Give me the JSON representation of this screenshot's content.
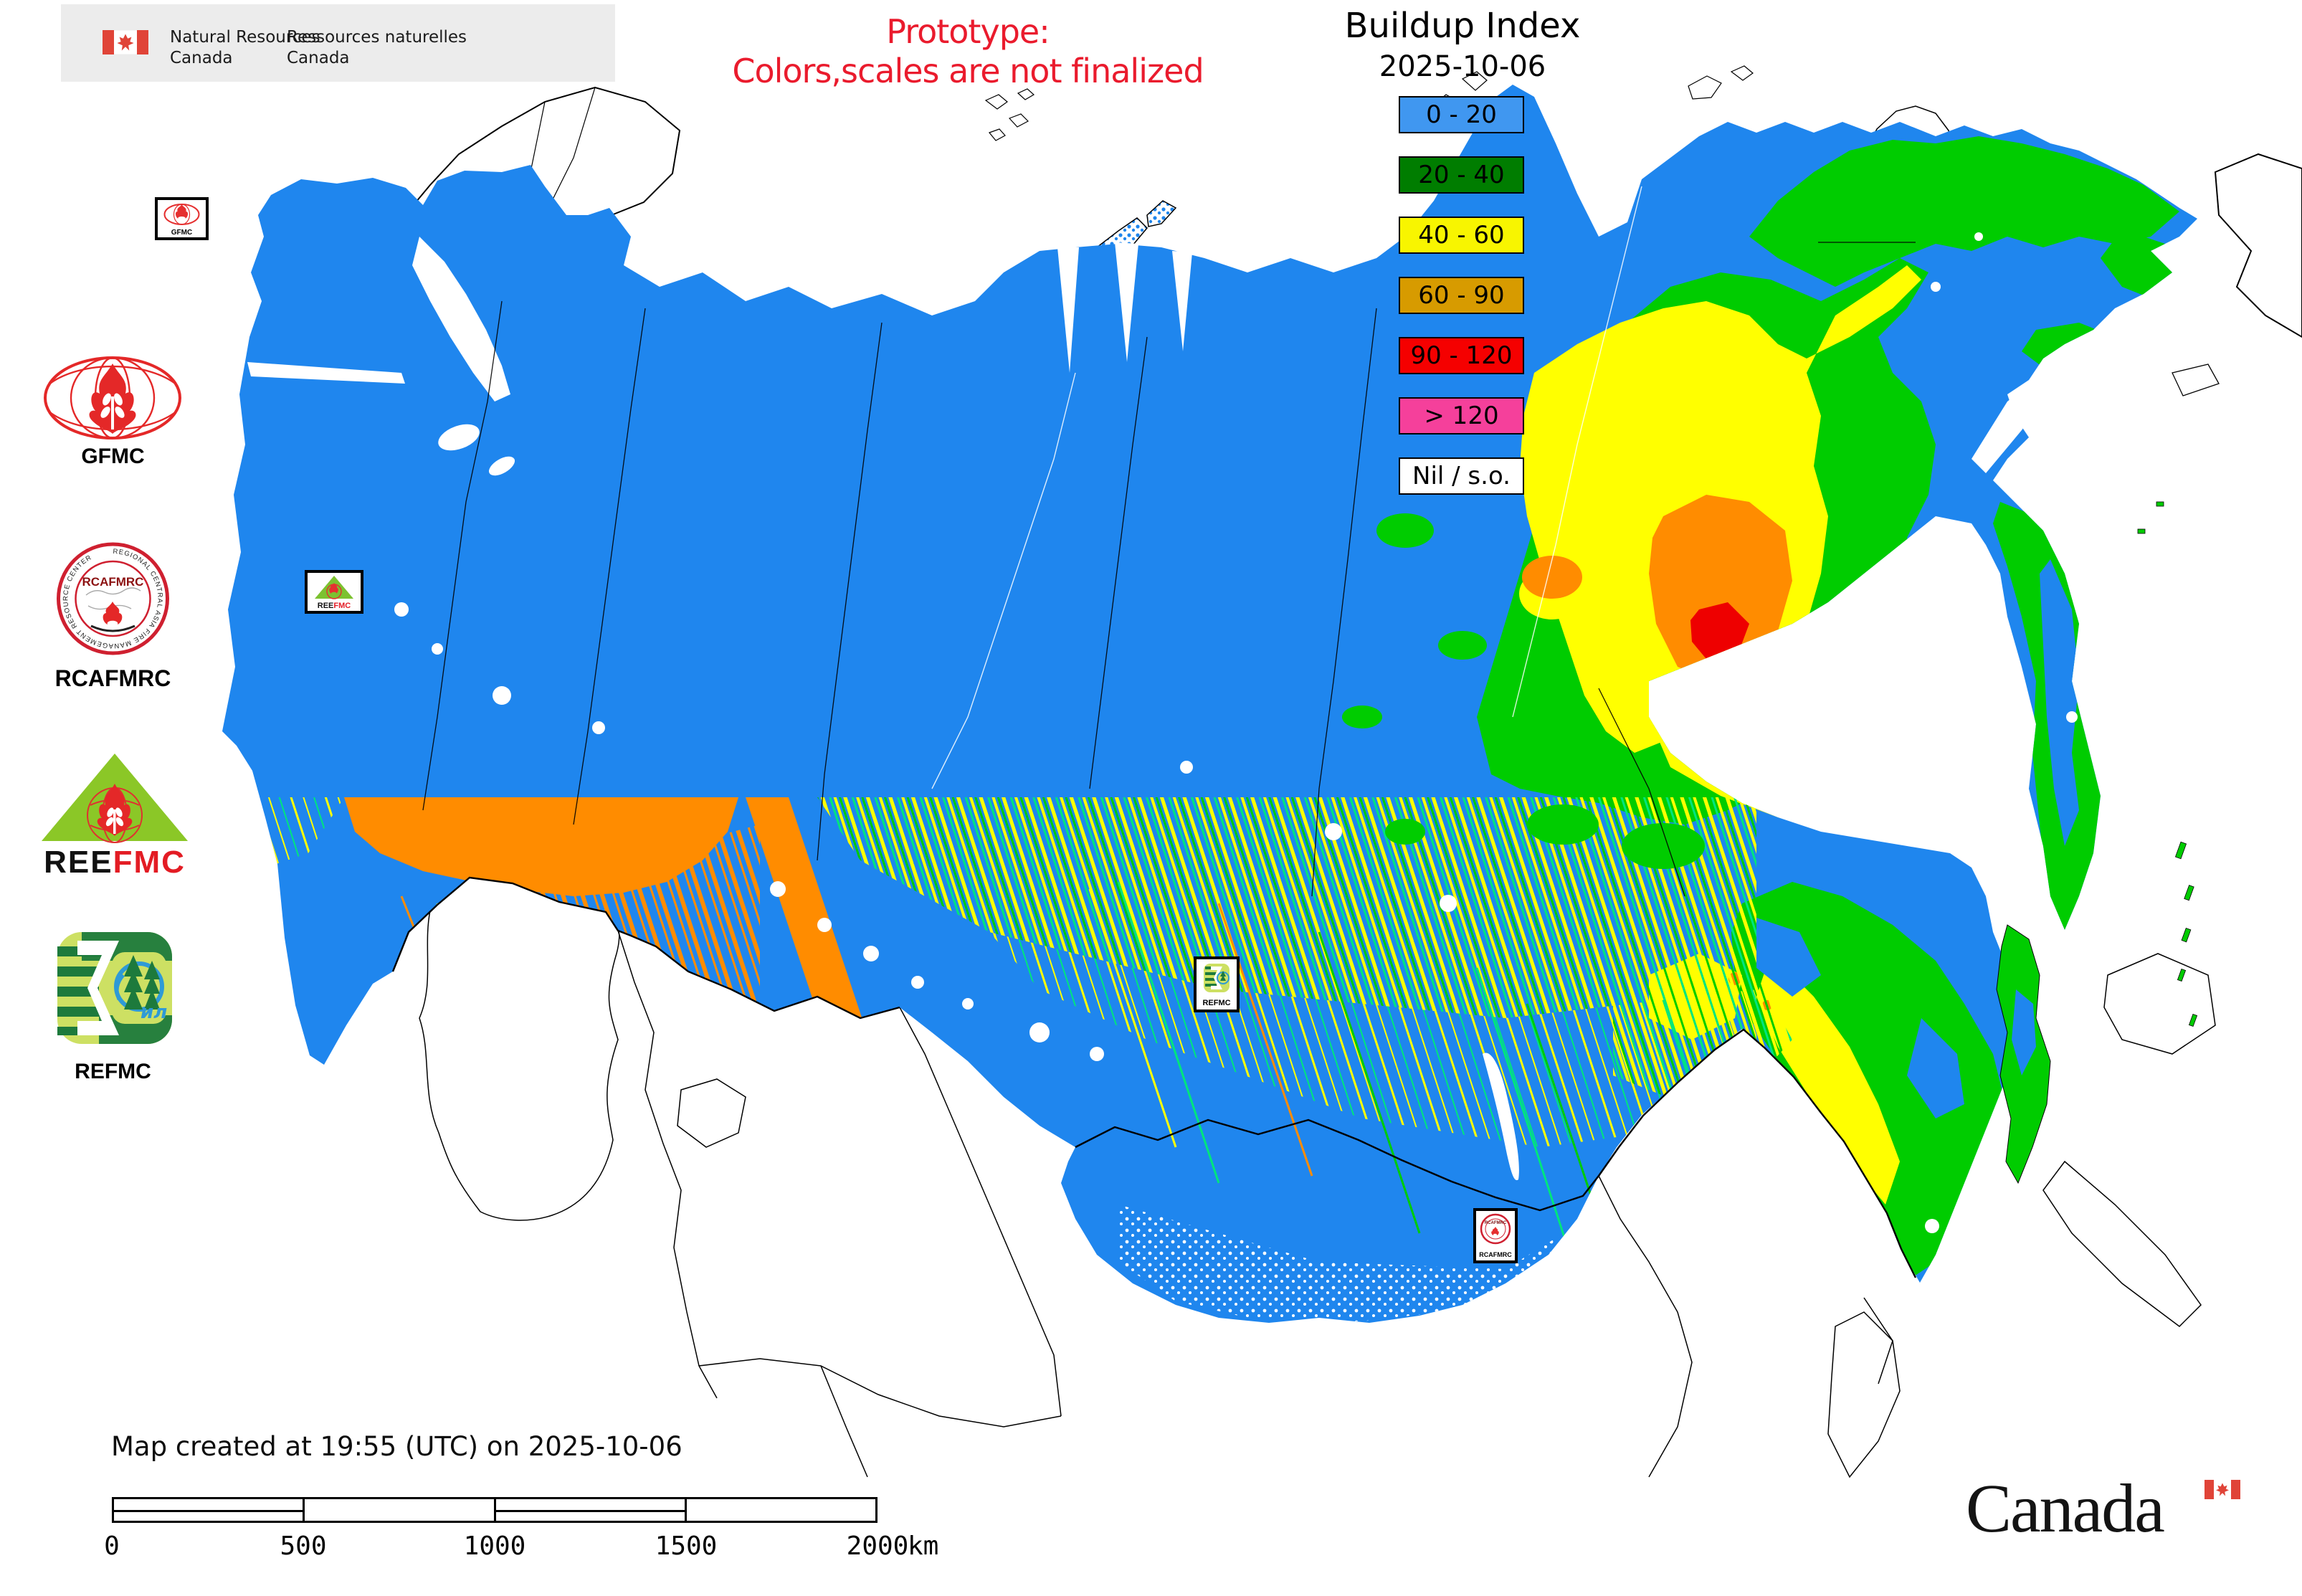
{
  "header": {
    "en_line1": "Natural Resources",
    "en_line2": "Canada",
    "fr_line1": "Ressources naturelles",
    "fr_line2": "Canada"
  },
  "prototype_notice": {
    "line1": "Prototype:",
    "line2": "Colors,scales are not finalized",
    "color": "#ea1b2d"
  },
  "legend": {
    "title": "Buildup Index",
    "date": "2025-10-06",
    "items": [
      {
        "label": "0 - 20",
        "color": "#4097f0"
      },
      {
        "label": "20 - 40",
        "color": "#007d00"
      },
      {
        "label": "40 - 60",
        "color": "#f8f500"
      },
      {
        "label": "60 - 90",
        "color": "#d79b00"
      },
      {
        "label": "90 - 120",
        "color": "#f50000"
      },
      {
        "label": "> 120",
        "color": "#f5409b"
      },
      {
        "label": "Nil / s.o.",
        "color": "#ffffff"
      }
    ]
  },
  "sidebar": {
    "gfmc_caption": "GFMC",
    "rcafmrc_caption": "RCAFMRC",
    "rcafmrc_ring_text": "REGIONAL CENTRAL ASIA FIRE MANAGEMENT RESOURCE CENTER",
    "rcafmrc_seal_text": "RCAFMRC",
    "reefmc_word_black": "REE",
    "reefmc_word_red": "FMC",
    "refmc_caption": "REFMC",
    "refmc_inner_text": "ил"
  },
  "map": {
    "markers": [
      {
        "id": "gfmc",
        "label": "GFMC"
      },
      {
        "id": "reefmc",
        "label_black": "REE",
        "label_red": "FMC"
      },
      {
        "id": "refmc",
        "label": "REFMC"
      },
      {
        "id": "rcafmrc",
        "label": "RCAFMRC"
      }
    ],
    "colors": {
      "index_0_20": "#1f86ee",
      "index_20_40": "#00cc00",
      "index_40_60": "#ffff00",
      "index_60_90": "#ff8c00",
      "index_90_120": "#ee0000",
      "spring_green": "#00e57d",
      "water": "#ffffff",
      "outline": "#000000"
    }
  },
  "footer": {
    "created": "Map created at 19:55 (UTC) on 2025-10-06",
    "scale_ticks": [
      "0",
      "500",
      "1000",
      "1500",
      "2000"
    ],
    "scale_unit": "km",
    "wordmark": "Canada"
  }
}
